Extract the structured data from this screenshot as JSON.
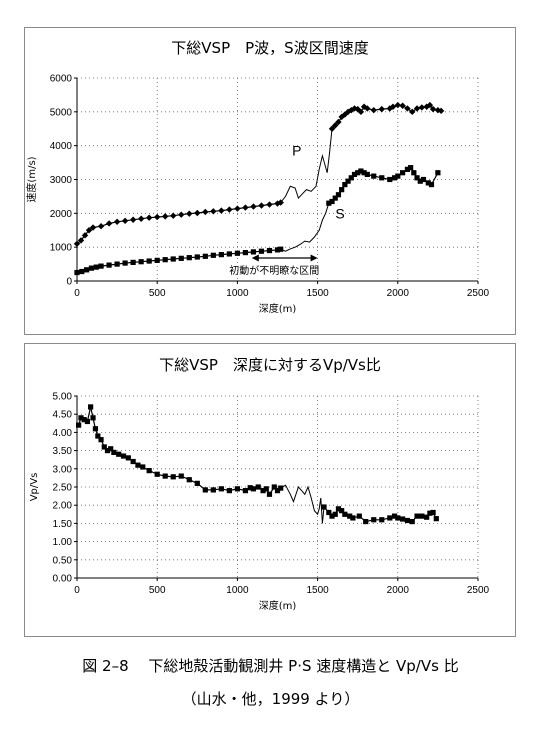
{
  "figure": {
    "caption": "図 2–8　 下総地殻活動観測井 P·S 速度構造と Vp/Vs 比",
    "source": "（山水・他，1999 より）"
  },
  "colors": {
    "series": "#000000",
    "grid": "#606060",
    "frame": "#8a8a8a"
  },
  "chart_data": [
    {
      "type": "scatter",
      "title": "下総VSP　P波，S波区間速度",
      "xlabel": "深度(m)",
      "ylabel": "速度(m/s)",
      "xlim": [
        0,
        2500
      ],
      "ylim": [
        0,
        6000
      ],
      "x_ticks": [
        0,
        500,
        1000,
        1500,
        2000,
        2500
      ],
      "y_ticks": [
        0,
        1000,
        2000,
        3000,
        4000,
        5000,
        6000
      ],
      "grid": true,
      "series": [
        {
          "name": "P",
          "marker": "diamond",
          "segments": [
            [
              [
                0,
                1100
              ],
              [
                25,
                1200
              ],
              [
                50,
                1350
              ],
              [
                75,
                1500
              ],
              [
                100,
                1580
              ],
              [
                150,
                1620
              ],
              [
                200,
                1700
              ],
              [
                250,
                1750
              ],
              [
                300,
                1780
              ],
              [
                350,
                1810
              ],
              [
                400,
                1840
              ],
              [
                450,
                1870
              ],
              [
                500,
                1890
              ],
              [
                550,
                1910
              ],
              [
                600,
                1930
              ],
              [
                650,
                1960
              ],
              [
                700,
                1990
              ],
              [
                750,
                2010
              ],
              [
                800,
                2040
              ],
              [
                850,
                2060
              ],
              [
                900,
                2080
              ],
              [
                950,
                2110
              ],
              [
                1000,
                2140
              ],
              [
                1050,
                2170
              ],
              [
                1100,
                2200
              ],
              [
                1150,
                2230
              ],
              [
                1200,
                2260
              ],
              [
                1250,
                2290
              ],
              [
                1270,
                2320
              ]
            ],
            [
              [
                1590,
                4500
              ],
              [
                1610,
                4600
              ],
              [
                1630,
                4700
              ],
              [
                1650,
                4850
              ],
              [
                1670,
                4920
              ],
              [
                1690,
                5000
              ],
              [
                1710,
                5050
              ],
              [
                1730,
                5100
              ],
              [
                1750,
                5080
              ],
              [
                1770,
                5000
              ],
              [
                1790,
                5150
              ],
              [
                1810,
                5100
              ],
              [
                1850,
                5050
              ],
              [
                1900,
                5080
              ],
              [
                1950,
                5100
              ],
              [
                1970,
                5150
              ],
              [
                2000,
                5200
              ],
              [
                2030,
                5180
              ],
              [
                2060,
                5100
              ],
              [
                2090,
                5000
              ],
              [
                2120,
                5100
              ],
              [
                2150,
                5130
              ],
              [
                2180,
                5150
              ],
              [
                2200,
                5200
              ],
              [
                2220,
                5080
              ],
              [
                2250,
                5050
              ],
              [
                2270,
                5030
              ]
            ]
          ],
          "line": [
            [
              1270,
              2320
            ],
            [
              1300,
              2500
            ],
            [
              1330,
              2800
            ],
            [
              1360,
              2750
            ],
            [
              1380,
              2450
            ],
            [
              1400,
              2550
            ],
            [
              1430,
              2700
            ],
            [
              1460,
              2650
            ],
            [
              1490,
              2800
            ],
            [
              1510,
              3300
            ],
            [
              1530,
              3700
            ],
            [
              1560,
              3200
            ],
            [
              1575,
              3800
            ],
            [
              1590,
              4500
            ]
          ]
        },
        {
          "name": "S",
          "marker": "square",
          "segments": [
            [
              [
                0,
                250
              ],
              [
                30,
                280
              ],
              [
                60,
                330
              ],
              [
                90,
                380
              ],
              [
                120,
                410
              ],
              [
                150,
                440
              ],
              [
                200,
                470
              ],
              [
                250,
                500
              ],
              [
                300,
                530
              ],
              [
                350,
                550
              ],
              [
                400,
                570
              ],
              [
                450,
                590
              ],
              [
                500,
                610
              ],
              [
                550,
                630
              ],
              [
                600,
                650
              ],
              [
                650,
                670
              ],
              [
                700,
                690
              ],
              [
                750,
                710
              ],
              [
                800,
                730
              ],
              [
                850,
                760
              ],
              [
                900,
                780
              ],
              [
                950,
                800
              ],
              [
                1000,
                820
              ],
              [
                1050,
                840
              ],
              [
                1100,
                860
              ],
              [
                1150,
                880
              ],
              [
                1200,
                900
              ],
              [
                1250,
                920
              ],
              [
                1270,
                940
              ]
            ],
            [
              [
                1570,
                2300
              ],
              [
                1590,
                2350
              ],
              [
                1610,
                2450
              ],
              [
                1630,
                2550
              ],
              [
                1650,
                2700
              ],
              [
                1670,
                2850
              ],
              [
                1690,
                2950
              ],
              [
                1710,
                3050
              ],
              [
                1730,
                3150
              ],
              [
                1750,
                3200
              ],
              [
                1770,
                3250
              ],
              [
                1790,
                3200
              ],
              [
                1810,
                3150
              ],
              [
                1850,
                3100
              ],
              [
                1900,
                3050
              ],
              [
                1950,
                3000
              ],
              [
                1980,
                3050
              ],
              [
                2000,
                3100
              ],
              [
                2030,
                3200
              ],
              [
                2060,
                3300
              ],
              [
                2080,
                3350
              ],
              [
                2100,
                3200
              ],
              [
                2120,
                3050
              ],
              [
                2140,
                2950
              ],
              [
                2160,
                3000
              ],
              [
                2190,
                2900
              ],
              [
                2210,
                2850
              ],
              [
                2250,
                3200
              ]
            ]
          ],
          "line": [
            [
              1270,
              940
            ],
            [
              1300,
              880
            ],
            [
              1330,
              950
            ],
            [
              1360,
              1000
            ],
            [
              1390,
              1080
            ],
            [
              1420,
              1180
            ],
            [
              1450,
              1150
            ],
            [
              1480,
              1300
            ],
            [
              1510,
              1500
            ],
            [
              1530,
              1800
            ],
            [
              1550,
              2000
            ],
            [
              1570,
              2300
            ]
          ]
        }
      ],
      "annotations": [
        {
          "text": "P",
          "x": 1370,
          "y": 3850
        },
        {
          "text": "S",
          "x": 1640,
          "y": 2000
        },
        {
          "text": "初動が不明瞭な区間",
          "x": 1230,
          "y": 320,
          "arrow_from": 1090,
          "arrow_to": 1500,
          "arrow_y": 680
        }
      ]
    },
    {
      "type": "scatter",
      "title": "下総VSP　深度に対するVp/Vs比",
      "xlabel": "深度(m)",
      "ylabel": "Vp/Vs",
      "xlim": [
        0,
        2500
      ],
      "ylim": [
        0,
        5
      ],
      "x_ticks": [
        0,
        500,
        1000,
        1500,
        2000,
        2500
      ],
      "y_ticks": [
        "0.00",
        "0.50",
        "1.00",
        "1.50",
        "2.00",
        "2.50",
        "3.00",
        "3.50",
        "4.00",
        "4.50",
        "5.00"
      ],
      "grid": true,
      "series": [
        {
          "name": "Vp/Vs",
          "marker": "square",
          "segments": [
            [
              [
                10,
                4.2
              ],
              [
                25,
                4.4
              ],
              [
                45,
                4.35
              ],
              [
                65,
                4.3
              ],
              [
                85,
                4.7
              ],
              [
                100,
                4.4
              ],
              [
                115,
                4.1
              ],
              [
                130,
                3.9
              ],
              [
                150,
                3.8
              ],
              [
                170,
                3.6
              ],
              [
                190,
                3.5
              ],
              [
                210,
                3.55
              ],
              [
                230,
                3.45
              ],
              [
                260,
                3.4
              ],
              [
                290,
                3.35
              ],
              [
                320,
                3.3
              ],
              [
                350,
                3.2
              ],
              [
                380,
                3.1
              ],
              [
                410,
                3.05
              ],
              [
                450,
                2.95
              ],
              [
                500,
                2.85
              ],
              [
                550,
                2.8
              ],
              [
                600,
                2.78
              ],
              [
                650,
                2.8
              ],
              [
                700,
                2.7
              ],
              [
                750,
                2.6
              ],
              [
                800,
                2.42
              ],
              [
                850,
                2.42
              ],
              [
                900,
                2.45
              ],
              [
                950,
                2.4
              ],
              [
                1000,
                2.45
              ],
              [
                1050,
                2.4
              ],
              [
                1080,
                2.48
              ],
              [
                1100,
                2.45
              ],
              [
                1130,
                2.5
              ],
              [
                1160,
                2.4
              ],
              [
                1180,
                2.45
              ],
              [
                1200,
                2.3
              ],
              [
                1230,
                2.5
              ],
              [
                1250,
                2.4
              ],
              [
                1270,
                2.47
              ]
            ],
            [
              [
                1540,
                1.95
              ],
              [
                1570,
                1.8
              ],
              [
                1590,
                1.7
              ],
              [
                1610,
                1.75
              ],
              [
                1630,
                1.9
              ],
              [
                1650,
                1.85
              ],
              [
                1670,
                1.75
              ],
              [
                1700,
                1.7
              ],
              [
                1720,
                1.65
              ],
              [
                1760,
                1.7
              ],
              [
                1800,
                1.55
              ],
              [
                1850,
                1.6
              ],
              [
                1900,
                1.6
              ],
              [
                1950,
                1.65
              ],
              [
                1980,
                1.7
              ],
              [
                2000,
                1.65
              ],
              [
                2030,
                1.62
              ],
              [
                2060,
                1.58
              ],
              [
                2090,
                1.55
              ],
              [
                2120,
                1.7
              ],
              [
                2150,
                1.7
              ],
              [
                2180,
                1.67
              ],
              [
                2200,
                1.78
              ],
              [
                2220,
                1.8
              ],
              [
                2240,
                1.63
              ]
            ]
          ],
          "line": [
            [
              1270,
              2.47
            ],
            [
              1300,
              2.55
            ],
            [
              1330,
              2.3
            ],
            [
              1350,
              2.1
            ],
            [
              1380,
              2.5
            ],
            [
              1400,
              2.4
            ],
            [
              1420,
              2.3
            ],
            [
              1440,
              2.5
            ],
            [
              1460,
              2.2
            ],
            [
              1480,
              1.85
            ],
            [
              1500,
              1.75
            ],
            [
              1510,
              1.9
            ],
            [
              1520,
              2.2
            ],
            [
              1530,
              1.5
            ],
            [
              1540,
              1.95
            ]
          ]
        }
      ],
      "annotations": []
    }
  ]
}
